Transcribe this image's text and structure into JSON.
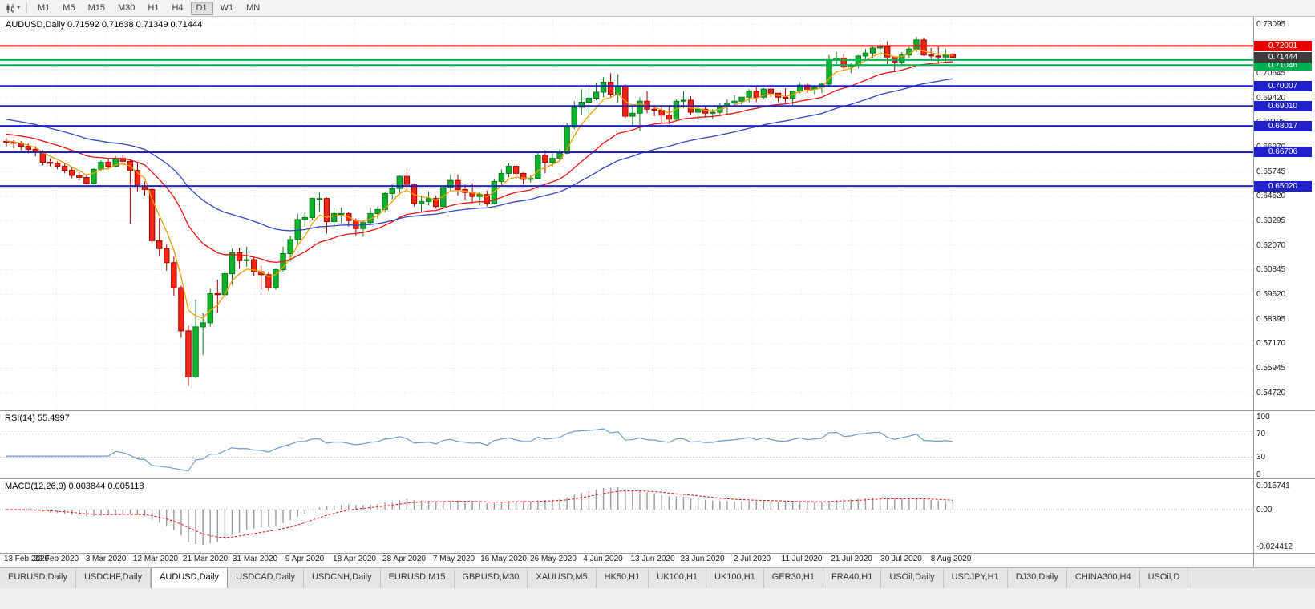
{
  "toolbar": {
    "chart_icon": "candlestick-chart-icon",
    "dropdown_glyph": "▾",
    "timeframes": [
      "M1",
      "M5",
      "M15",
      "M30",
      "H1",
      "H4",
      "D1",
      "W1",
      "MN"
    ],
    "active_timeframe": "D1"
  },
  "chart_data": {
    "type": "candlestick",
    "symbol": "AUDUSD",
    "timeframe": "Daily",
    "title": "AUDUSD,Daily",
    "ohlc_text": "0.71592 0.71638 0.71349 0.71444",
    "open": 0.71592,
    "high": 0.71638,
    "low": 0.71349,
    "close": 0.71444,
    "current_price": 0.71444,
    "bid_label": {
      "text": "0.71444",
      "bg": "#3c3c3c"
    },
    "y_axis": {
      "top_value": 0.73095,
      "bottom_value": 0.5472,
      "tick_step": 0.01225,
      "labels": [
        "0.73095",
        "0.71870",
        "0.70645",
        "0.69420",
        "0.68195",
        "0.66970",
        "0.65745",
        "0.64520",
        "0.63295",
        "0.62070",
        "0.60845",
        "0.59620",
        "0.58395",
        "0.57170",
        "0.55945",
        "0.54720"
      ]
    },
    "x_axis": {
      "date_labels": [
        "13 Feb 2020",
        "22 Feb 2020",
        "3 Mar 2020",
        "12 Mar 2020",
        "21 Mar 2020",
        "31 Mar 2020",
        "9 Apr 2020",
        "18 Apr 2020",
        "28 Apr 2020",
        "7 May 2020",
        "16 May 2020",
        "26 May 2020",
        "4 Jun 2020",
        "13 Jun 2020",
        "23 Jun 2020",
        "2 Jul 2020",
        "11 Jul 2020",
        "21 Jul 2020",
        "30 Jul 2020",
        "8 Aug 2020"
      ]
    },
    "levels": [
      {
        "value": 0.72001,
        "color": "#e60000",
        "label": "0.72001"
      },
      {
        "value": 0.713,
        "color": "#00b050",
        "label": ""
      },
      {
        "value": 0.71046,
        "color": "#00b050",
        "label": "0.71046"
      },
      {
        "value": 0.70007,
        "color": "#2121cc",
        "label": "0.70007"
      },
      {
        "value": 0.6901,
        "color": "#2121cc",
        "label": "0.69010"
      },
      {
        "value": 0.68017,
        "color": "#2121cc",
        "label": "0.68017"
      },
      {
        "value": 0.66706,
        "color": "#2121cc",
        "label": "0.66706"
      },
      {
        "value": 0.6502,
        "color": "#2121cc",
        "label": "0.65020"
      }
    ],
    "moving_averages": [
      {
        "period": 5,
        "color": "#f0a000",
        "seed": 0.673
      },
      {
        "period": 20,
        "color": "#ee1111",
        "seed": 0.6765
      },
      {
        "period": 40,
        "color": "#3347c4",
        "seed": 0.684
      }
    ],
    "colors": {
      "bull": "#0fb32b",
      "bull_border": "#067919",
      "bear": "#f22613",
      "bear_border": "#a80000",
      "grid": "#e8e8e8",
      "separator": "#9b9b9b",
      "axis_text": "#1a1a1a"
    },
    "candles": [
      [
        0.6725,
        0.674,
        0.67,
        0.672
      ],
      [
        0.672,
        0.673,
        0.669,
        0.6715
      ],
      [
        0.6715,
        0.6725,
        0.668,
        0.67
      ],
      [
        0.67,
        0.6715,
        0.6665,
        0.6685
      ],
      [
        0.6685,
        0.67,
        0.665,
        0.667
      ],
      [
        0.667,
        0.668,
        0.6605,
        0.662
      ],
      [
        0.662,
        0.664,
        0.66,
        0.6615
      ],
      [
        0.6615,
        0.6625,
        0.6585,
        0.66
      ],
      [
        0.66,
        0.6615,
        0.6565,
        0.658
      ],
      [
        0.658,
        0.6595,
        0.654,
        0.6555
      ],
      [
        0.6555,
        0.657,
        0.653,
        0.6545
      ],
      [
        0.6545,
        0.6555,
        0.651,
        0.6515
      ],
      [
        0.6515,
        0.659,
        0.651,
        0.6585
      ],
      [
        0.6585,
        0.663,
        0.6575,
        0.662
      ],
      [
        0.662,
        0.6635,
        0.6585,
        0.66
      ],
      [
        0.66,
        0.665,
        0.6595,
        0.664
      ],
      [
        0.664,
        0.6655,
        0.661,
        0.6625
      ],
      [
        0.6625,
        0.663,
        0.6313,
        0.658
      ],
      [
        0.658,
        0.662,
        0.6475,
        0.65
      ],
      [
        0.65,
        0.6525,
        0.6455,
        0.6485
      ],
      [
        0.6485,
        0.649,
        0.6215,
        0.623
      ],
      [
        0.623,
        0.634,
        0.615,
        0.619
      ],
      [
        0.619,
        0.621,
        0.608,
        0.612
      ],
      [
        0.612,
        0.615,
        0.5955,
        0.5995
      ],
      [
        0.5995,
        0.6005,
        0.5745,
        0.578
      ],
      [
        0.578,
        0.5805,
        0.5506,
        0.555
      ],
      [
        0.555,
        0.5935,
        0.5545,
        0.58
      ],
      [
        0.58,
        0.587,
        0.566,
        0.582
      ],
      [
        0.582,
        0.599,
        0.58,
        0.5965
      ],
      [
        0.5965,
        0.6035,
        0.587,
        0.596
      ],
      [
        0.596,
        0.608,
        0.5945,
        0.6065
      ],
      [
        0.6065,
        0.619,
        0.601,
        0.617
      ],
      [
        0.617,
        0.6195,
        0.609,
        0.613
      ],
      [
        0.613,
        0.62,
        0.61,
        0.6135
      ],
      [
        0.6135,
        0.6145,
        0.6055,
        0.6075
      ],
      [
        0.6075,
        0.6105,
        0.5985,
        0.606
      ],
      [
        0.606,
        0.6075,
        0.598,
        0.5995
      ],
      [
        0.5995,
        0.609,
        0.5985,
        0.6085
      ],
      [
        0.6085,
        0.62,
        0.6075,
        0.6165
      ],
      [
        0.6165,
        0.6255,
        0.6125,
        0.6235
      ],
      [
        0.6235,
        0.6365,
        0.6205,
        0.6335
      ],
      [
        0.6335,
        0.637,
        0.63,
        0.6345
      ],
      [
        0.6345,
        0.6445,
        0.633,
        0.644
      ],
      [
        0.644,
        0.647,
        0.6375,
        0.644
      ],
      [
        0.644,
        0.6445,
        0.6265,
        0.6325
      ],
      [
        0.6325,
        0.6395,
        0.63,
        0.6365
      ],
      [
        0.6365,
        0.6395,
        0.6315,
        0.6365
      ],
      [
        0.6365,
        0.6375,
        0.63,
        0.633
      ],
      [
        0.633,
        0.634,
        0.6255,
        0.629
      ],
      [
        0.629,
        0.633,
        0.625,
        0.632
      ],
      [
        0.632,
        0.6395,
        0.6305,
        0.6365
      ],
      [
        0.6365,
        0.64,
        0.634,
        0.6385
      ],
      [
        0.6385,
        0.647,
        0.637,
        0.6465
      ],
      [
        0.6465,
        0.651,
        0.6435,
        0.649
      ],
      [
        0.649,
        0.6555,
        0.646,
        0.655
      ],
      [
        0.655,
        0.657,
        0.648,
        0.651
      ],
      [
        0.651,
        0.6515,
        0.64,
        0.6415
      ],
      [
        0.6415,
        0.6455,
        0.6375,
        0.6425
      ],
      [
        0.6425,
        0.6475,
        0.6405,
        0.644
      ],
      [
        0.644,
        0.6455,
        0.639,
        0.64
      ],
      [
        0.64,
        0.65,
        0.639,
        0.6495
      ],
      [
        0.6495,
        0.656,
        0.648,
        0.653
      ],
      [
        0.653,
        0.656,
        0.6455,
        0.6485
      ],
      [
        0.6485,
        0.651,
        0.6435,
        0.647
      ],
      [
        0.647,
        0.6515,
        0.6415,
        0.645
      ],
      [
        0.645,
        0.647,
        0.6405,
        0.646
      ],
      [
        0.646,
        0.648,
        0.64,
        0.6415
      ],
      [
        0.6415,
        0.6535,
        0.641,
        0.6525
      ],
      [
        0.6525,
        0.6585,
        0.6505,
        0.6565
      ],
      [
        0.6565,
        0.6615,
        0.6545,
        0.66
      ],
      [
        0.66,
        0.661,
        0.654,
        0.6565
      ],
      [
        0.6565,
        0.657,
        0.651,
        0.6535
      ],
      [
        0.6535,
        0.6555,
        0.652,
        0.654
      ],
      [
        0.654,
        0.6675,
        0.6535,
        0.6655
      ],
      [
        0.6655,
        0.668,
        0.6565,
        0.662
      ],
      [
        0.662,
        0.6665,
        0.66,
        0.664
      ],
      [
        0.664,
        0.6685,
        0.6625,
        0.6665
      ],
      [
        0.6665,
        0.6815,
        0.666,
        0.6795
      ],
      [
        0.6795,
        0.6925,
        0.6785,
        0.6895
      ],
      [
        0.6895,
        0.6985,
        0.6855,
        0.692
      ],
      [
        0.692,
        0.699,
        0.6855,
        0.694
      ],
      [
        0.694,
        0.7015,
        0.693,
        0.697
      ],
      [
        0.697,
        0.7045,
        0.6945,
        0.702
      ],
      [
        0.702,
        0.7065,
        0.6945,
        0.696
      ],
      [
        0.696,
        0.706,
        0.692,
        0.7
      ],
      [
        0.7,
        0.701,
        0.684,
        0.685
      ],
      [
        0.685,
        0.691,
        0.68,
        0.6865
      ],
      [
        0.6865,
        0.6945,
        0.6775,
        0.6925
      ],
      [
        0.6925,
        0.6975,
        0.6865,
        0.6885
      ],
      [
        0.6885,
        0.6905,
        0.685,
        0.688
      ],
      [
        0.688,
        0.6895,
        0.6815,
        0.6855
      ],
      [
        0.6855,
        0.6905,
        0.681,
        0.6835
      ],
      [
        0.6835,
        0.6935,
        0.683,
        0.6925
      ],
      [
        0.6925,
        0.6975,
        0.689,
        0.693
      ],
      [
        0.693,
        0.695,
        0.6855,
        0.687
      ],
      [
        0.687,
        0.6895,
        0.683,
        0.6885
      ],
      [
        0.6885,
        0.69,
        0.6845,
        0.6865
      ],
      [
        0.6865,
        0.6885,
        0.6835,
        0.687
      ],
      [
        0.687,
        0.6915,
        0.685,
        0.69
      ],
      [
        0.69,
        0.6935,
        0.6855,
        0.6915
      ],
      [
        0.6915,
        0.6955,
        0.69,
        0.6925
      ],
      [
        0.6925,
        0.6945,
        0.6905,
        0.6945
      ],
      [
        0.6945,
        0.6985,
        0.692,
        0.6975
      ],
      [
        0.6975,
        0.6995,
        0.692,
        0.6945
      ],
      [
        0.6945,
        0.699,
        0.6935,
        0.6985
      ],
      [
        0.6985,
        0.699,
        0.6945,
        0.6965
      ],
      [
        0.6965,
        0.6965,
        0.692,
        0.6945
      ],
      [
        0.6945,
        0.699,
        0.692,
        0.694
      ],
      [
        0.694,
        0.6975,
        0.6905,
        0.6975
      ],
      [
        0.6975,
        0.702,
        0.6965,
        0.7005
      ],
      [
        0.7005,
        0.7015,
        0.6965,
        0.6985
      ],
      [
        0.6985,
        0.7005,
        0.696,
        0.6995
      ],
      [
        0.6995,
        0.7015,
        0.6965,
        0.701
      ],
      [
        0.701,
        0.7155,
        0.7,
        0.713
      ],
      [
        0.713,
        0.717,
        0.7105,
        0.714
      ],
      [
        0.714,
        0.716,
        0.7085,
        0.7095
      ],
      [
        0.7095,
        0.7115,
        0.7065,
        0.7105
      ],
      [
        0.7105,
        0.7155,
        0.709,
        0.715
      ],
      [
        0.715,
        0.7185,
        0.7135,
        0.7165
      ],
      [
        0.7165,
        0.7195,
        0.714,
        0.719
      ],
      [
        0.719,
        0.721,
        0.714,
        0.7195
      ],
      [
        0.7195,
        0.7225,
        0.7105,
        0.7145
      ],
      [
        0.7145,
        0.715,
        0.7075,
        0.712
      ],
      [
        0.712,
        0.717,
        0.71,
        0.7155
      ],
      [
        0.7155,
        0.7195,
        0.714,
        0.7185
      ],
      [
        0.7185,
        0.7245,
        0.717,
        0.723
      ],
      [
        0.723,
        0.724,
        0.715,
        0.7155
      ],
      [
        0.7155,
        0.719,
        0.7135,
        0.715
      ],
      [
        0.715,
        0.72,
        0.711,
        0.7145
      ],
      [
        0.7145,
        0.7185,
        0.7115,
        0.7155
      ],
      [
        0.7159,
        0.7164,
        0.7135,
        0.7144
      ]
    ],
    "indicators": {
      "rsi": {
        "title": "RSI(14)",
        "value": "55.4997",
        "period": 14,
        "axis_labels": [
          "100",
          "70",
          "30",
          "0"
        ],
        "axis_values": [
          100,
          70,
          30,
          0
        ],
        "upper_level": 70,
        "lower_level": 30,
        "color": "#6b9bd2"
      },
      "macd": {
        "title": "MACD(12,26,9)",
        "values": "0.003844 0.005118",
        "fast": 12,
        "slow": 26,
        "signal": 9,
        "axis_labels": [
          "0.015741",
          "0.00",
          "-0.024412"
        ],
        "axis_values": [
          0.015741,
          0,
          -0.024412
        ],
        "histogram_color": "#9a9a9a",
        "signal_color": "#ee1111"
      }
    }
  },
  "bottom_tabs": {
    "active_index": 2,
    "tabs": [
      "EURUSD,Daily",
      "USDCHF,Daily",
      "AUDUSD,Daily",
      "USDCAD,Daily",
      "USDCNH,Daily",
      "EURUSD,M15",
      "GBPUSD,M30",
      "XAUUSD,M5",
      "HK50,H1",
      "UK100,H1",
      "UK100,H1",
      "GER30,H1",
      "FRA40,H1",
      "USOil,Daily",
      "USDJPY,H1",
      "DJ30,Daily",
      "CHINA300,H4",
      "USOil,D"
    ]
  }
}
